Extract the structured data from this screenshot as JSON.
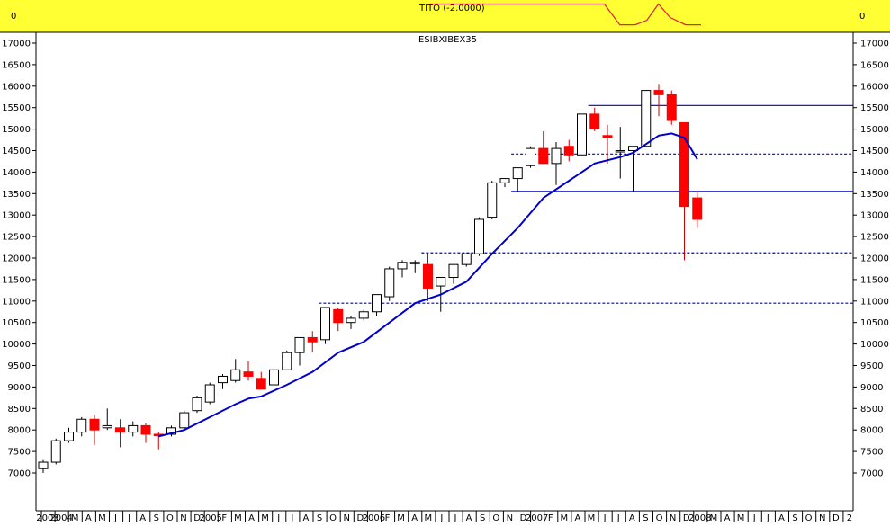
{
  "indicator": {
    "title": "TITO (-2.0000)",
    "left_value": "0",
    "right_value": "0",
    "background": "#ffff33",
    "line_color": "#e0203a",
    "line": [
      [
        0.0,
        0.05
      ],
      [
        0.25,
        0.05
      ],
      [
        0.45,
        0.05
      ],
      [
        0.49,
        0.82
      ],
      [
        0.53,
        0.82
      ],
      [
        0.56,
        0.65
      ],
      [
        0.59,
        0.05
      ],
      [
        0.62,
        0.55
      ],
      [
        0.66,
        0.82
      ],
      [
        0.7,
        0.82
      ]
    ]
  },
  "chart_data": {
    "type": "candlestick",
    "title": "ESIBXIBEX35",
    "y_ticks": [
      7000,
      7500,
      8000,
      8500,
      9000,
      9500,
      10000,
      10500,
      11000,
      11500,
      12000,
      12500,
      13000,
      13500,
      14000,
      14500,
      15000,
      15500,
      16000,
      16500,
      17000
    ],
    "x_ticks": [
      "2003",
      "2004",
      "M",
      "A",
      "M",
      "J",
      "J",
      "A",
      "S",
      "O",
      "N",
      "D",
      "2005",
      "F",
      "M",
      "A",
      "M",
      "J",
      "J",
      "A",
      "S",
      "O",
      "N",
      "D",
      "2006",
      "F",
      "M",
      "A",
      "M",
      "J",
      "J",
      "A",
      "S",
      "O",
      "N",
      "D",
      "2007",
      "F",
      "M",
      "A",
      "M",
      "J",
      "J",
      "A",
      "S",
      "O",
      "N",
      "D",
      "2008",
      "M",
      "A",
      "M",
      "J",
      "J",
      "A",
      "S",
      "O",
      "N",
      "D",
      "2"
    ],
    "grid": false,
    "colors": {
      "up": "#ffffff",
      "down": "#ff0000",
      "wick_down": "#cc0000",
      "ma": "#0000cc",
      "level": "#0000cc"
    },
    "candles": [
      {
        "o": 7100,
        "h": 7300,
        "l": 7000,
        "c": 7250
      },
      {
        "o": 7250,
        "h": 7800,
        "l": 7200,
        "c": 7750
      },
      {
        "o": 7750,
        "h": 8050,
        "l": 7700,
        "c": 7950
      },
      {
        "o": 7950,
        "h": 8300,
        "l": 7850,
        "c": 8250
      },
      {
        "o": 8250,
        "h": 8350,
        "l": 7650,
        "c": 8000
      },
      {
        "o": 8050,
        "h": 8500,
        "l": 8000,
        "c": 8100
      },
      {
        "o": 8050,
        "h": 8250,
        "l": 7600,
        "c": 7950
      },
      {
        "o": 7950,
        "h": 8200,
        "l": 7850,
        "c": 8100
      },
      {
        "o": 8100,
        "h": 8150,
        "l": 7700,
        "c": 7900
      },
      {
        "o": 7900,
        "h": 7950,
        "l": 7550,
        "c": 7880
      },
      {
        "o": 7900,
        "h": 8100,
        "l": 7850,
        "c": 8050
      },
      {
        "o": 8050,
        "h": 8450,
        "l": 8000,
        "c": 8400
      },
      {
        "o": 8450,
        "h": 8800,
        "l": 8400,
        "c": 8750
      },
      {
        "o": 8650,
        "h": 9100,
        "l": 8600,
        "c": 9050
      },
      {
        "o": 9100,
        "h": 9300,
        "l": 8950,
        "c": 9250
      },
      {
        "o": 9150,
        "h": 9650,
        "l": 9100,
        "c": 9400
      },
      {
        "o": 9350,
        "h": 9600,
        "l": 9150,
        "c": 9250
      },
      {
        "o": 9200,
        "h": 9350,
        "l": 8950,
        "c": 8950
      },
      {
        "o": 9050,
        "h": 9450,
        "l": 9000,
        "c": 9400
      },
      {
        "o": 9400,
        "h": 9850,
        "l": 9400,
        "c": 9800
      },
      {
        "o": 9800,
        "h": 10150,
        "l": 9500,
        "c": 10150
      },
      {
        "o": 10150,
        "h": 10300,
        "l": 9800,
        "c": 10050
      },
      {
        "o": 10100,
        "h": 10850,
        "l": 10000,
        "c": 10850
      },
      {
        "o": 10800,
        "h": 10850,
        "l": 10300,
        "c": 10500
      },
      {
        "o": 10500,
        "h": 10650,
        "l": 10350,
        "c": 10600
      },
      {
        "o": 10600,
        "h": 10800,
        "l": 10550,
        "c": 10750
      },
      {
        "o": 10750,
        "h": 11150,
        "l": 10650,
        "c": 11150
      },
      {
        "o": 11100,
        "h": 11800,
        "l": 11000,
        "c": 11750
      },
      {
        "o": 11750,
        "h": 11950,
        "l": 11550,
        "c": 11900
      },
      {
        "o": 11900,
        "h": 11950,
        "l": 11650,
        "c": 11900
      },
      {
        "o": 11850,
        "h": 12100,
        "l": 11000,
        "c": 11300
      },
      {
        "o": 11350,
        "h": 11550,
        "l": 10750,
        "c": 11550
      },
      {
        "o": 11550,
        "h": 11850,
        "l": 11400,
        "c": 11850
      },
      {
        "o": 11850,
        "h": 12100,
        "l": 11800,
        "c": 12100
      },
      {
        "o": 12100,
        "h": 12950,
        "l": 12050,
        "c": 12900
      },
      {
        "o": 12950,
        "h": 13800,
        "l": 12900,
        "c": 13750
      },
      {
        "o": 13750,
        "h": 13850,
        "l": 13650,
        "c": 13850
      },
      {
        "o": 13850,
        "h": 14100,
        "l": 13550,
        "c": 14100
      },
      {
        "o": 14150,
        "h": 14600,
        "l": 14100,
        "c": 14550
      },
      {
        "o": 14550,
        "h": 14950,
        "l": 14250,
        "c": 14200
      },
      {
        "o": 14200,
        "h": 14700,
        "l": 13700,
        "c": 14550
      },
      {
        "o": 14600,
        "h": 14750,
        "l": 14250,
        "c": 14400
      },
      {
        "o": 14400,
        "h": 15350,
        "l": 14400,
        "c": 15350
      },
      {
        "o": 15350,
        "h": 15500,
        "l": 14950,
        "c": 15000
      },
      {
        "o": 14850,
        "h": 15100,
        "l": 14200,
        "c": 14800
      },
      {
        "o": 14500,
        "h": 15050,
        "l": 13850,
        "c": 14500
      },
      {
        "o": 14500,
        "h": 14600,
        "l": 13550,
        "c": 14600
      },
      {
        "o": 14600,
        "h": 15900,
        "l": 14600,
        "c": 15900
      },
      {
        "o": 15900,
        "h": 16050,
        "l": 15300,
        "c": 15800
      },
      {
        "o": 15800,
        "h": 15900,
        "l": 15100,
        "c": 15200
      },
      {
        "o": 15150,
        "h": 15150,
        "l": 11950,
        "c": 13200
      },
      {
        "o": 13400,
        "h": 13550,
        "l": 12700,
        "c": 12900
      }
    ],
    "moving_average": [
      [
        9,
        7850
      ],
      [
        11,
        8000
      ],
      [
        13,
        8300
      ],
      [
        15,
        8600
      ],
      [
        16,
        8730
      ],
      [
        17,
        8780
      ],
      [
        19,
        9050
      ],
      [
        21,
        9350
      ],
      [
        23,
        9800
      ],
      [
        25,
        10050
      ],
      [
        27,
        10500
      ],
      [
        29,
        10950
      ],
      [
        31,
        11150
      ],
      [
        33,
        11450
      ],
      [
        35,
        12100
      ],
      [
        37,
        12700
      ],
      [
        39,
        13400
      ],
      [
        41,
        13800
      ],
      [
        43,
        14200
      ],
      [
        45,
        14350
      ],
      [
        46,
        14450
      ],
      [
        47,
        14650
      ],
      [
        48,
        14850
      ],
      [
        49,
        14900
      ],
      [
        50,
        14800
      ],
      [
        51,
        14300
      ]
    ],
    "levels": [
      {
        "value": 15550,
        "style": "solid",
        "from": 42.5,
        "to": 64
      },
      {
        "value": 14420,
        "style": "dashed",
        "from": 36.5,
        "to": 64
      },
      {
        "value": 13550,
        "style": "solid",
        "from": 36.5,
        "to": 64
      },
      {
        "value": 12120,
        "style": "dashed",
        "from": 29.5,
        "to": 64
      },
      {
        "value": 10950,
        "style": "dashed",
        "from": 21.5,
        "to": 64
      }
    ]
  }
}
